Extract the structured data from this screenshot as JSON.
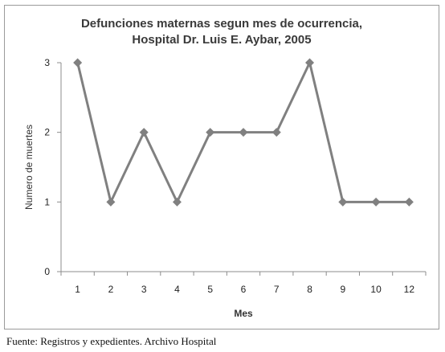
{
  "chart_data": {
    "type": "line",
    "title": [
      "Defunciones maternas segun mes de ocurrencia,",
      "Hospital Dr. Luis E. Aybar, 2005"
    ],
    "xlabel": "Mes",
    "ylabel": "Numero de muertes",
    "categories": [
      "1",
      "2",
      "3",
      "4",
      "5",
      "6",
      "7",
      "8",
      "9",
      "10",
      "12"
    ],
    "series": [
      {
        "values": [
          3,
          1,
          2,
          1,
          2,
          2,
          2,
          3,
          1,
          1,
          1
        ]
      }
    ],
    "ylim": [
      0,
      3
    ],
    "yticks": [
      0,
      1,
      2,
      3
    ],
    "color": "#808080",
    "grid": false,
    "marker": "diamond"
  },
  "source_note": "Fuente: Registros y expedientes. Archivo Hospital"
}
